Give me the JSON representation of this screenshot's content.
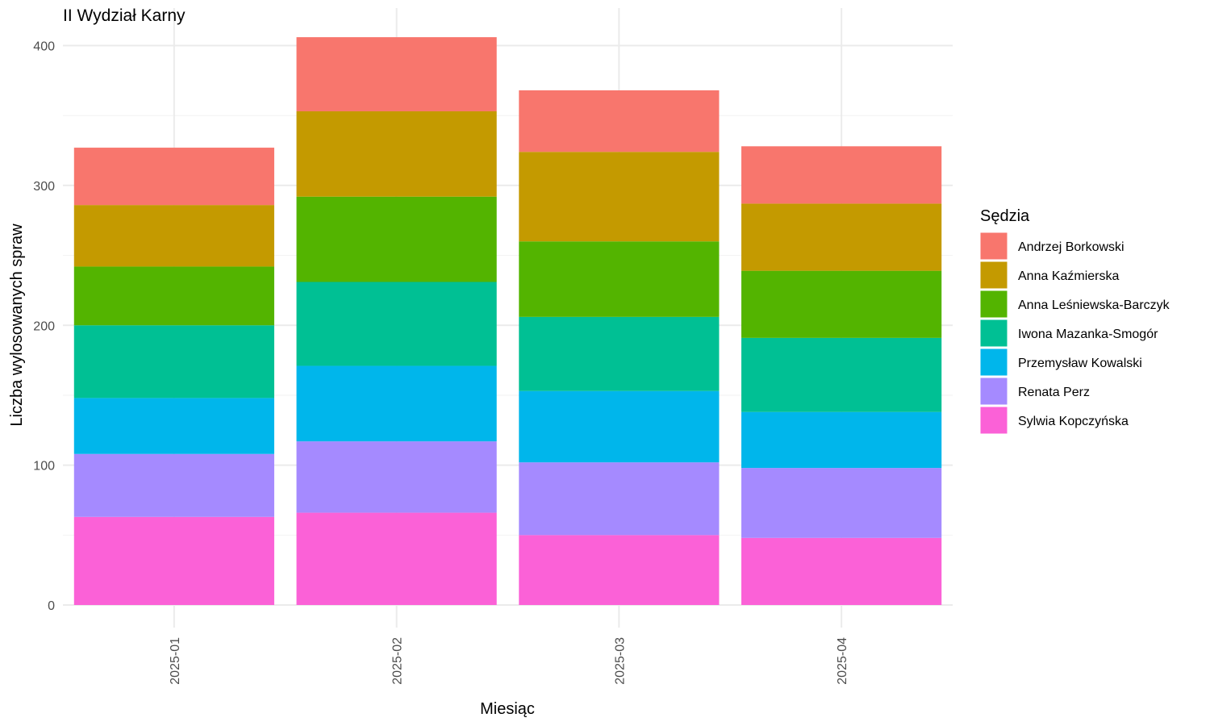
{
  "chart_data": {
    "type": "bar",
    "stacked": true,
    "title": "II Wydział Karny",
    "xlabel": "Miesiąc",
    "ylabel": "Liczba wylosowanych spraw",
    "categories": [
      "2025-01",
      "2025-02",
      "2025-03",
      "2025-04"
    ],
    "ylim": [
      -15,
      415
    ],
    "yticks": [
      0,
      100,
      200,
      300,
      400
    ],
    "grid": true,
    "legend_position": "right",
    "legend_title": "Sędzia",
    "series": [
      {
        "name": "Sylwia Kopczyńska",
        "color": "#FB61D7",
        "values": [
          63,
          66,
          50,
          48
        ]
      },
      {
        "name": "Renata Perz",
        "color": "#A58AFF",
        "values": [
          45,
          51,
          52,
          50
        ]
      },
      {
        "name": "Przemysław Kowalski",
        "color": "#00B6EB",
        "values": [
          40,
          54,
          51,
          40
        ]
      },
      {
        "name": "Iwona Mazanka-Smogór",
        "color": "#00C094",
        "values": [
          52,
          60,
          53,
          53
        ]
      },
      {
        "name": "Anna Leśniewska-Barczyk",
        "color": "#53B400",
        "values": [
          42,
          61,
          54,
          48
        ]
      },
      {
        "name": "Anna Kaźmierska",
        "color": "#C49A00",
        "values": [
          44,
          61,
          64,
          48
        ]
      },
      {
        "name": "Andrzej Borkowski",
        "color": "#F8766D",
        "values": [
          41,
          53,
          44,
          41
        ]
      }
    ],
    "legend_order": [
      "Andrzej Borkowski",
      "Anna Kaźmierska",
      "Anna Leśniewska-Barczyk",
      "Iwona Mazanka-Smogór",
      "Przemysław Kowalski",
      "Renata Perz",
      "Sylwia Kopczyńska"
    ]
  }
}
